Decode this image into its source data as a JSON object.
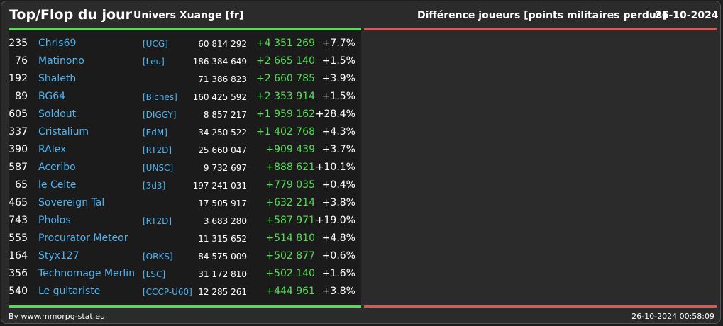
{
  "header": {
    "title": "Top/Flop du jour",
    "universe": "Univers Xuange [fr]",
    "category": "Différence joueurs [points militaires perdus]",
    "date": "26-10-2024"
  },
  "colors": {
    "accent_top": "#55dd55",
    "accent_flop": "#dd5555",
    "player_link": "#4fb3f0",
    "positive": "#55dd55"
  },
  "top": [
    {
      "rank": "235",
      "name": "Chris69",
      "alliance": "[UCG]",
      "points": "60 814 292",
      "diff": "+4 351 269",
      "pct": "+7.7%"
    },
    {
      "rank": "76",
      "name": "Matinono",
      "alliance": "[Leu]",
      "points": "186 384 649",
      "diff": "+2 665 140",
      "pct": "+1.5%"
    },
    {
      "rank": "192",
      "name": "Shaleth",
      "alliance": "",
      "points": "71 386 823",
      "diff": "+2 660 785",
      "pct": "+3.9%"
    },
    {
      "rank": "89",
      "name": "BG64",
      "alliance": "[Biches]",
      "points": "160 425 592",
      "diff": "+2 353 914",
      "pct": "+1.5%"
    },
    {
      "rank": "605",
      "name": "Soldout",
      "alliance": "[DIGGY]",
      "points": "8 857 217",
      "diff": "+1 959 162",
      "pct": "+28.4%"
    },
    {
      "rank": "337",
      "name": "Cristalium",
      "alliance": "[EdM]",
      "points": "34 250 522",
      "diff": "+1 402 768",
      "pct": "+4.3%"
    },
    {
      "rank": "390",
      "name": "RAlex",
      "alliance": "[RT2D]",
      "points": "25 660 047",
      "diff": "+909 439",
      "pct": "+3.7%"
    },
    {
      "rank": "587",
      "name": "Aceribo",
      "alliance": "[UNSC]",
      "points": "9 732 697",
      "diff": "+888 621",
      "pct": "+10.1%"
    },
    {
      "rank": "65",
      "name": "le Celte",
      "alliance": "[3d3]",
      "points": "197 241 031",
      "diff": "+779 035",
      "pct": "+0.4%"
    },
    {
      "rank": "465",
      "name": "Sovereign Tal",
      "alliance": "",
      "points": "17 505 917",
      "diff": "+632 214",
      "pct": "+3.8%"
    },
    {
      "rank": "743",
      "name": "Pholos",
      "alliance": "[RT2D]",
      "points": "3 683 280",
      "diff": "+587 971",
      "pct": "+19.0%"
    },
    {
      "rank": "555",
      "name": "Procurator Meteor",
      "alliance": "",
      "points": "11 315 652",
      "diff": "+514 810",
      "pct": "+4.8%"
    },
    {
      "rank": "164",
      "name": "Styx127",
      "alliance": "[ORKS]",
      "points": "84 575 009",
      "diff": "+502 877",
      "pct": "+0.6%"
    },
    {
      "rank": "356",
      "name": "Technomage Merlin",
      "alliance": "[LSC]",
      "points": "31 172 810",
      "diff": "+502 140",
      "pct": "+1.6%"
    },
    {
      "rank": "540",
      "name": "Le guitariste",
      "alliance": "[CCCP-U60]",
      "points": "12 285 261",
      "diff": "+444 961",
      "pct": "+3.8%"
    }
  ],
  "flop": [],
  "footer": {
    "source": "By www.mmorpg-stat.eu",
    "timestamp": "26-10-2024 00:58:09"
  }
}
